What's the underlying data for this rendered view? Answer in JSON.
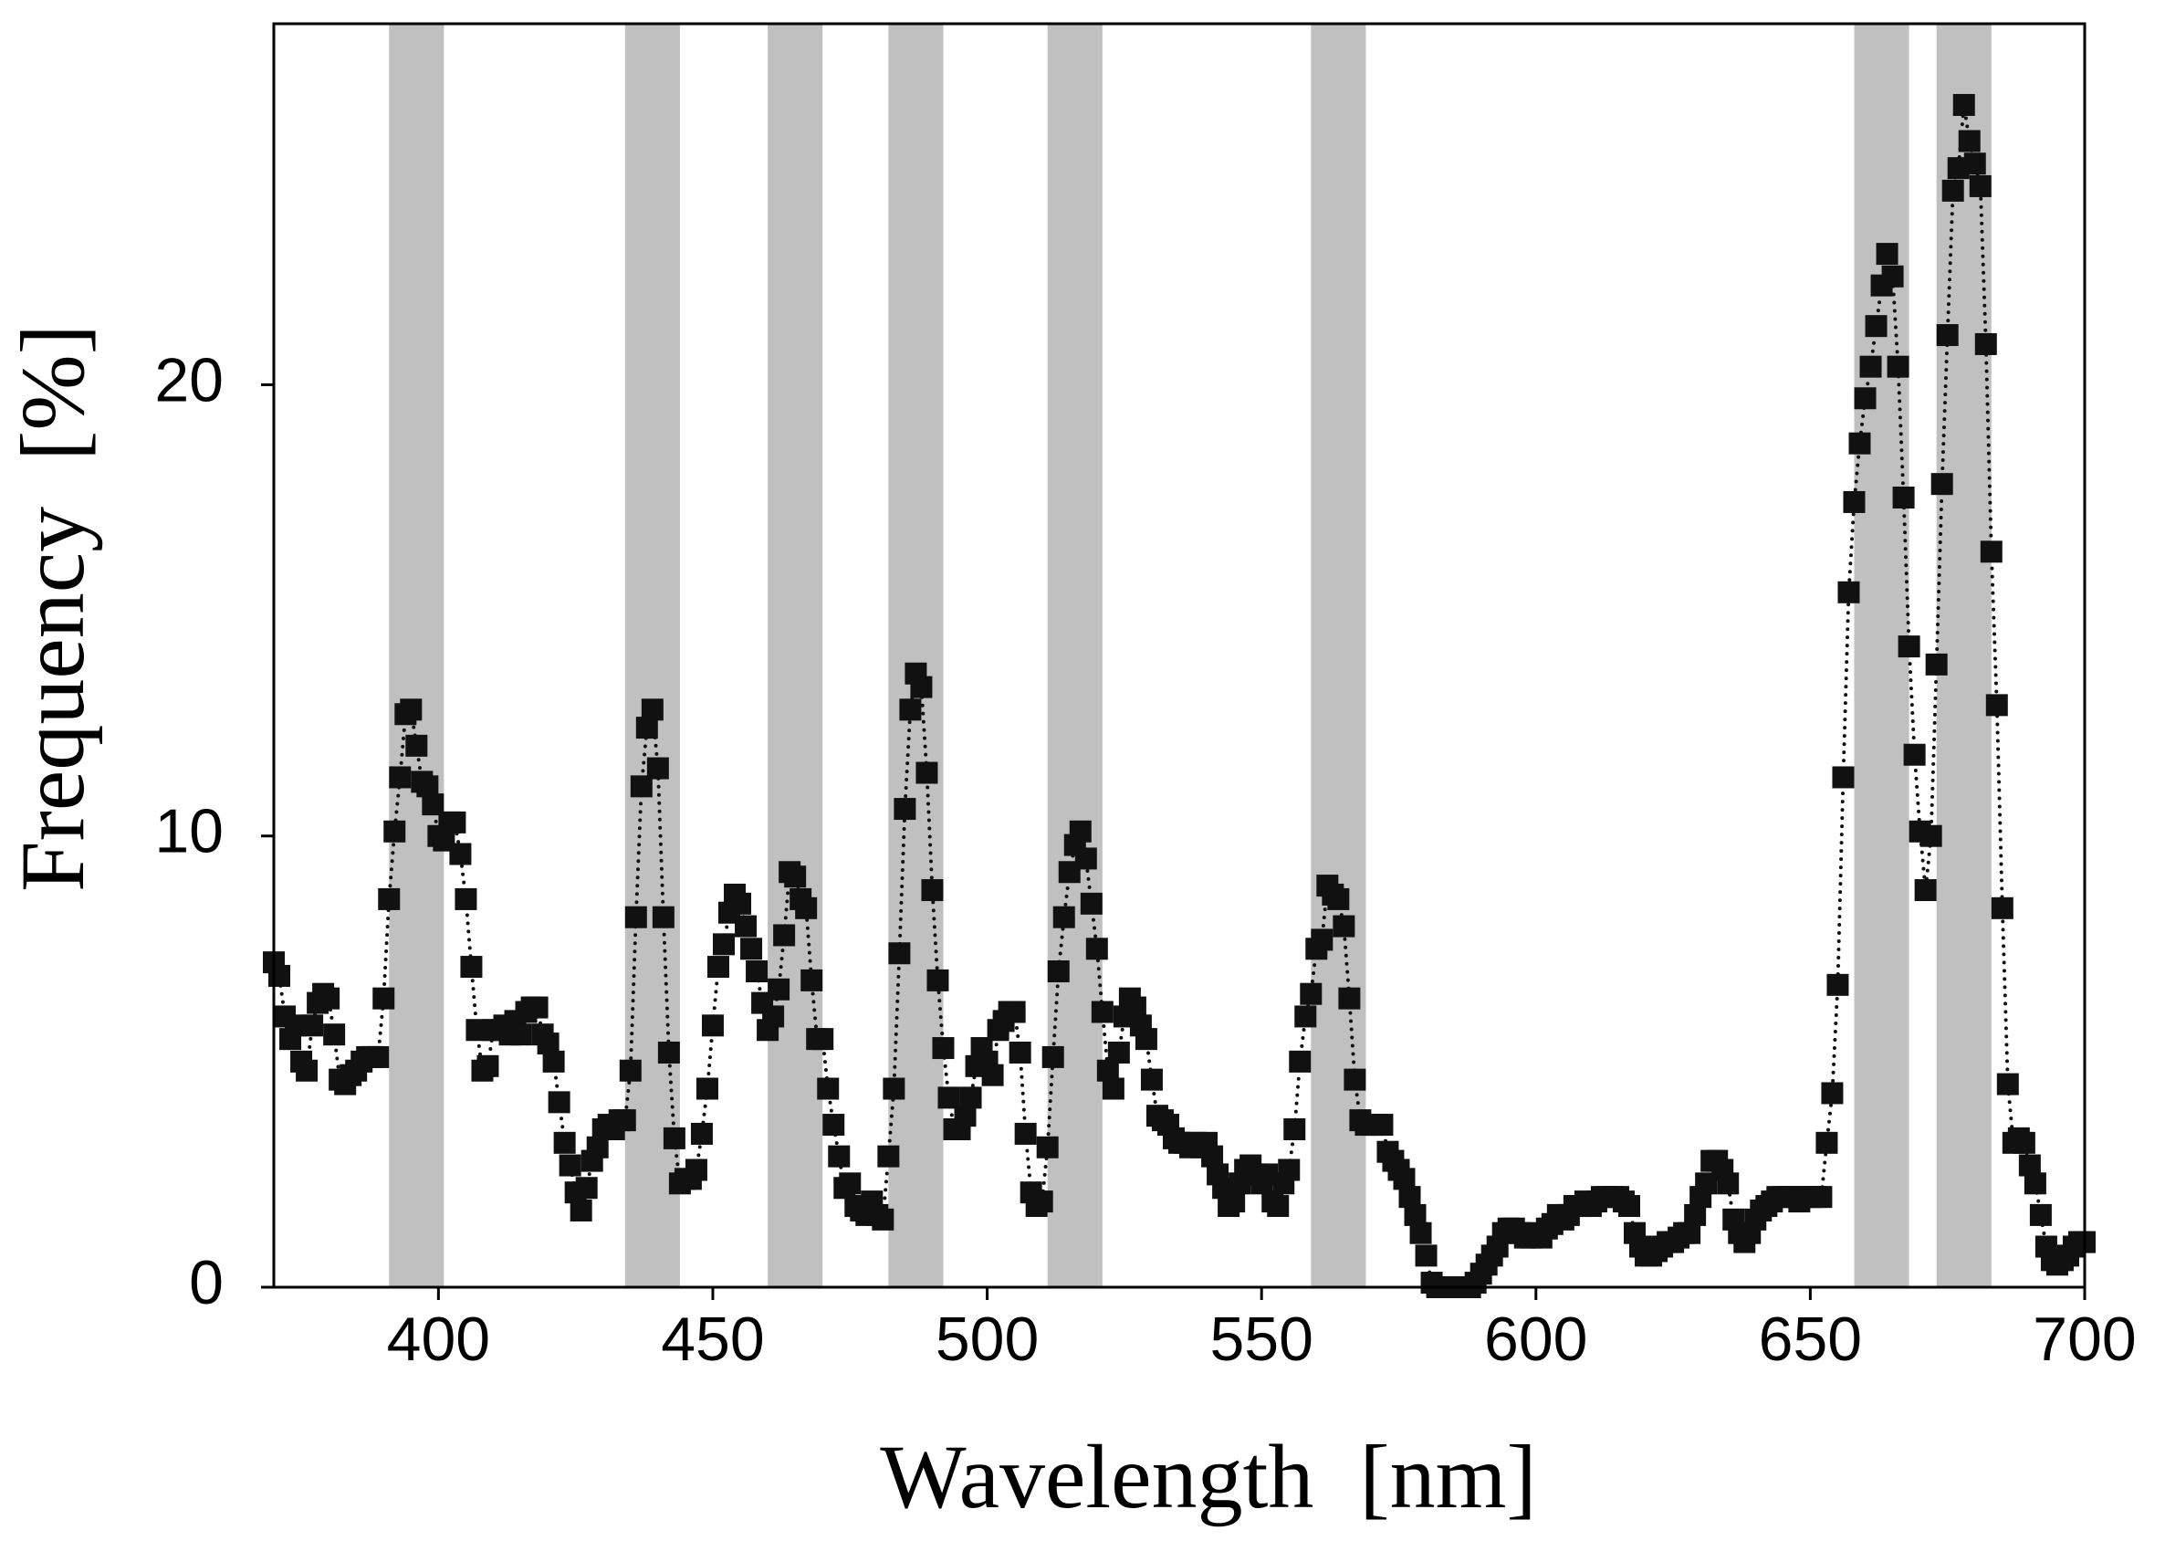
{
  "chart_data": {
    "type": "scatter",
    "xlabel": "Wavelength  [nm]",
    "ylabel": "Frequency  [%]",
    "xlim": [
      370,
      700
    ],
    "ylim": [
      0,
      28
    ],
    "xticks": [
      400,
      450,
      500,
      550,
      600,
      650,
      700
    ],
    "yticks": [
      0,
      10,
      20
    ],
    "bands": [
      [
        391,
        401
      ],
      [
        434,
        444
      ],
      [
        460,
        470
      ],
      [
        482,
        492
      ],
      [
        511,
        521
      ],
      [
        559,
        569
      ],
      [
        658,
        668
      ],
      [
        673,
        683
      ]
    ],
    "band_color": "#c0c0c0",
    "x": [
      370,
      371,
      372,
      373,
      374,
      375,
      376,
      377,
      378,
      379,
      380,
      381,
      382,
      383,
      384,
      385,
      386,
      387,
      388,
      389,
      390,
      391,
      392,
      393,
      394,
      395,
      396,
      397,
      398,
      399,
      400,
      401,
      402,
      403,
      404,
      405,
      406,
      407,
      408,
      409,
      410,
      411,
      412,
      413,
      414,
      415,
      416,
      417,
      418,
      419,
      420,
      421,
      422,
      423,
      424,
      425,
      426,
      427,
      428,
      429,
      430,
      431,
      432,
      433,
      434,
      435,
      436,
      437,
      438,
      439,
      440,
      441,
      442,
      443,
      444,
      445,
      446,
      447,
      448,
      449,
      450,
      451,
      452,
      453,
      454,
      455,
      456,
      457,
      458,
      459,
      460,
      461,
      462,
      463,
      464,
      465,
      466,
      467,
      468,
      469,
      470,
      471,
      472,
      473,
      474,
      475,
      476,
      477,
      478,
      479,
      480,
      481,
      482,
      483,
      484,
      485,
      486,
      487,
      488,
      489,
      490,
      491,
      492,
      493,
      494,
      495,
      496,
      497,
      498,
      499,
      500,
      501,
      502,
      503,
      504,
      505,
      506,
      507,
      508,
      509,
      510,
      511,
      512,
      513,
      514,
      515,
      516,
      517,
      518,
      519,
      520,
      521,
      522,
      523,
      524,
      525,
      526,
      527,
      528,
      529,
      530,
      531,
      532,
      533,
      534,
      535,
      536,
      537,
      538,
      539,
      540,
      541,
      542,
      543,
      544,
      545,
      546,
      547,
      548,
      549,
      550,
      551,
      552,
      553,
      554,
      555,
      556,
      557,
      558,
      559,
      560,
      561,
      562,
      563,
      564,
      565,
      566,
      567,
      568,
      569,
      570,
      571,
      572,
      573,
      574,
      575,
      576,
      577,
      578,
      579,
      580,
      581,
      582,
      583,
      584,
      585,
      586,
      587,
      588,
      589,
      590,
      591,
      592,
      593,
      594,
      595,
      596,
      597,
      598,
      599,
      600,
      601,
      602,
      603,
      604,
      605,
      606,
      607,
      608,
      609,
      610,
      611,
      612,
      613,
      614,
      615,
      616,
      617,
      618,
      619,
      620,
      621,
      622,
      623,
      624,
      625,
      626,
      627,
      628,
      629,
      630,
      631,
      632,
      633,
      634,
      635,
      636,
      637,
      638,
      639,
      640,
      641,
      642,
      643,
      644,
      645,
      646,
      647,
      648,
      649,
      650,
      651,
      652,
      653,
      654,
      655,
      656,
      657,
      658,
      659,
      660,
      661,
      662,
      663,
      664,
      665,
      666,
      667,
      668,
      669,
      670,
      671,
      672,
      673,
      674,
      675,
      676,
      677,
      678,
      679,
      680,
      681,
      682,
      683,
      684,
      685,
      686,
      687,
      688,
      689,
      690,
      691,
      692,
      693,
      694,
      695,
      696,
      697,
      698,
      699,
      700
    ],
    "series": [
      {
        "color": "#111111",
        "values": [
          7.2,
          6.9,
          6.0,
          5.5,
          5.8,
          5.0,
          4.8,
          5.8,
          6.3,
          6.5,
          6.4,
          5.6,
          4.6,
          4.5,
          4.7,
          4.8,
          5.0,
          5.1,
          5.1,
          5.1,
          6.4,
          8.6,
          10.1,
          11.3,
          12.7,
          12.8,
          12.0,
          11.2,
          11.1,
          10.7,
          10.0,
          9.9,
          10.3,
          10.3,
          9.6,
          8.6,
          7.1,
          5.7,
          4.8,
          4.9,
          5.7,
          5.7,
          5.8,
          5.6,
          5.9,
          5.6,
          6.1,
          6.2,
          6.2,
          5.6,
          5.4,
          5.0,
          4.1,
          3.2,
          2.7,
          2.1,
          1.7,
          2.2,
          2.8,
          3.1,
          3.5,
          3.6,
          3.5,
          3.7,
          3.7,
          4.8,
          8.2,
          11.1,
          12.4,
          12.8,
          11.5,
          8.2,
          5.2,
          3.3,
          2.3,
          2.4,
          2.4,
          2.6,
          3.4,
          4.4,
          5.8,
          7.1,
          7.6,
          8.3,
          8.7,
          8.5,
          8.0,
          7.5,
          7.0,
          6.3,
          5.7,
          6.0,
          6.6,
          7.8,
          9.2,
          9.1,
          8.6,
          8.4,
          6.8,
          5.5,
          5.5,
          4.4,
          3.6,
          2.9,
          2.2,
          2.3,
          1.8,
          1.7,
          1.6,
          1.9,
          1.6,
          1.5,
          2.9,
          4.4,
          7.4,
          10.6,
          12.8,
          13.6,
          13.3,
          11.4,
          8.8,
          6.8,
          5.3,
          4.2,
          3.5,
          3.5,
          3.8,
          4.2,
          4.9,
          5.3,
          5.0,
          4.7,
          5.7,
          5.9,
          6.1,
          6.1,
          5.2,
          3.4,
          2.1,
          1.8,
          1.9,
          3.1,
          5.1,
          7.0,
          8.2,
          9.2,
          9.8,
          10.1,
          9.5,
          8.5,
          7.5,
          6.1,
          4.8,
          4.4,
          5.2,
          6.0,
          6.4,
          6.2,
          5.8,
          5.5,
          4.6,
          3.8,
          3.7,
          3.6,
          3.3,
          3.2,
          3.2,
          3.1,
          3.2,
          3.1,
          3.2,
          2.9,
          2.5,
          2.2,
          1.8,
          1.9,
          2.3,
          2.6,
          2.7,
          2.5,
          2.3,
          2.5,
          1.9,
          1.8,
          2.3,
          2.6,
          3.5,
          5.0,
          6.0,
          6.5,
          7.5,
          7.7,
          8.9,
          8.7,
          8.6,
          8.0,
          6.4,
          4.6,
          3.7,
          3.6,
          3.6,
          3.6,
          3.6,
          3.0,
          2.8,
          2.6,
          2.4,
          2.0,
          1.6,
          1.2,
          0.7,
          0.1,
          0,
          0,
          0,
          0,
          0,
          0,
          0,
          0.1,
          0.3,
          0.5,
          0.7,
          0.9,
          1.2,
          1.3,
          1.3,
          1.2,
          1.1,
          1.1,
          1.2,
          1.1,
          1.3,
          1.4,
          1.6,
          1.5,
          1.6,
          1.8,
          1.8,
          1.9,
          1.8,
          1.9,
          2.0,
          2.0,
          2.0,
          2.0,
          1.9,
          1.8,
          1.2,
          0.9,
          0.7,
          0.7,
          0.8,
          0.9,
          1.0,
          1.0,
          1.1,
          1.2,
          1.2,
          1.6,
          2.0,
          2.3,
          2.8,
          2.8,
          2.6,
          2.3,
          1.5,
          1.2,
          1.0,
          1.2,
          1.5,
          1.7,
          1.8,
          1.9,
          2.0,
          2.0,
          2.0,
          2.0,
          1.9,
          2.0,
          2.0,
          2.0,
          2.0,
          3.2,
          4.3,
          6.7,
          11.3,
          15.4,
          17.4,
          18.7,
          19.7,
          20.4,
          21.3,
          22.2,
          22.9,
          22.4,
          20.4,
          17.5,
          14.2,
          11.8,
          10.1,
          8.8,
          10.0,
          13.8,
          17.8,
          21.1,
          24.3,
          24.8,
          26.2,
          25.4,
          24.9,
          24.4,
          20.9,
          16.3,
          12.9,
          8.4,
          4.5,
          3.2,
          3.3,
          3.2,
          2.7,
          2.3,
          1.6,
          0.9,
          0.6,
          0.5,
          0.6,
          0.7,
          0.9,
          1.0,
          1.0
        ]
      }
    ]
  }
}
